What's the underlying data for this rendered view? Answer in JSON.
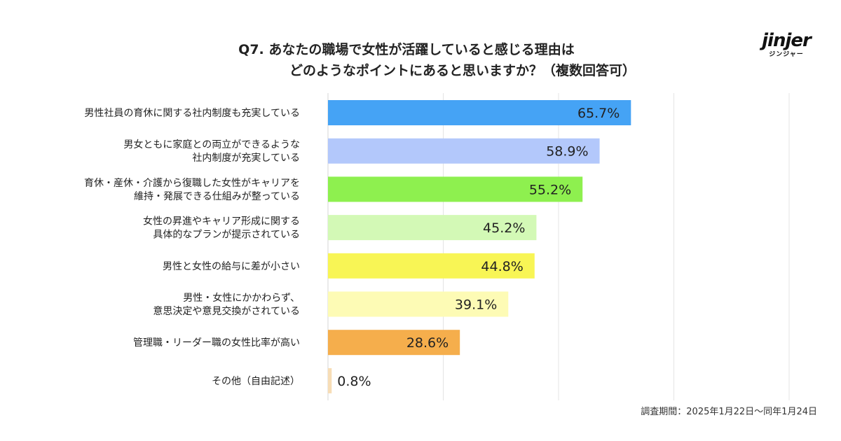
{
  "header": {
    "title_line1": "Q7. あなたの職場で女性が活躍していると感じる理由は",
    "title_line2": "どのようなポイントにあると思いますか？（複数回答可）"
  },
  "logo": {
    "wordmark": "jinjer",
    "kana": "ジンジャー"
  },
  "footer": {
    "period": "調査期間：2025年1月22日〜同年1月24日"
  },
  "chart_data": {
    "type": "bar",
    "orientation": "horizontal",
    "unit": "%",
    "xlim": [
      0,
      100
    ],
    "grid": true,
    "categories": [
      [
        "男性社員の育休に関する社内制度も充実している"
      ],
      [
        "男女ともに家庭との両立ができるような",
        "社内制度が充実している"
      ],
      [
        "育休・産休・介護から復職した女性がキャリアを",
        "維持・発展できる仕組みが整っている"
      ],
      [
        "女性の昇進やキャリア形成に関する",
        "具体的なプランが提示されている"
      ],
      [
        "男性と女性の給与に差が小さい"
      ],
      [
        "男性・女性にかかわらず、",
        "意思決定や意見交換がされている"
      ],
      [
        "管理職・リーダー職の女性比率が高い"
      ],
      [
        "その他（自由記述）"
      ]
    ],
    "values": [
      65.7,
      58.9,
      55.2,
      45.2,
      44.8,
      39.1,
      28.6,
      0.8
    ],
    "value_labels": [
      "65.7%",
      "58.9%",
      "55.2%",
      "45.2%",
      "44.8%",
      "39.1%",
      "28.6%",
      "0.8%"
    ],
    "colors": [
      "#45a3f5",
      "#b3c8fb",
      "#8ef04f",
      "#d3f9b6",
      "#f8f555",
      "#fdfbb5",
      "#f5ae4c",
      "#f7ddb6"
    ]
  }
}
